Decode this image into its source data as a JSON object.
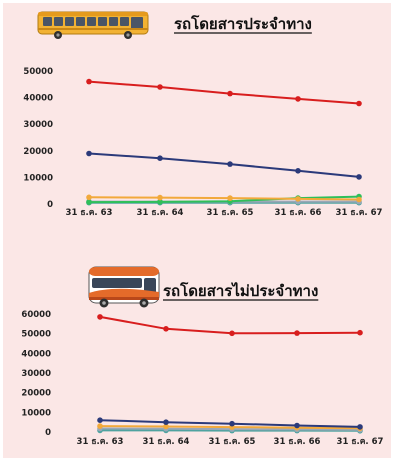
{
  "colors": {
    "background": "#fbe7e6",
    "red": "#d81e1e",
    "navy": "#2b3a7a",
    "orange": "#f2a93b",
    "green": "#2fbf5a",
    "gray": "#9aa7b6",
    "teal": "#4fa3a0"
  },
  "chart_data": [
    {
      "type": "line",
      "title": "รถโดยสารประจำทาง",
      "icon": "bus-icon",
      "x": [
        "31 ธ.ค. 63",
        "31 ธ.ค. 64",
        "31 ธ.ค. 65",
        "31 ธ.ค. 66",
        "31 ธ.ค. 67"
      ],
      "ylim": [
        0,
        50000
      ],
      "yticks": [
        "0",
        "10000",
        "20000",
        "30000",
        "40000",
        "50000"
      ],
      "grid": false,
      "series": [
        {
          "color": "#d81e1e",
          "values": [
            46000,
            44000,
            41500,
            39500,
            37800
          ]
        },
        {
          "color": "#2b3a7a",
          "values": [
            19000,
            17200,
            15000,
            12500,
            10200
          ]
        },
        {
          "color": "#f2a93b",
          "values": [
            2500,
            2400,
            2200,
            1900,
            1700
          ]
        },
        {
          "color": "#2fbf5a",
          "values": [
            700,
            800,
            1000,
            2200,
            2800
          ]
        },
        {
          "color": "#9aa7b6",
          "values": [
            900,
            900,
            900,
            900,
            900
          ]
        },
        {
          "color": "#4fa3a0",
          "values": [
            500,
            500,
            500,
            500,
            500
          ]
        }
      ]
    },
    {
      "type": "line",
      "title": "รถโดยสารไม่ประจำทาง",
      "icon": "tour-bus-icon",
      "x": [
        "31 ธ.ค. 63",
        "31 ธ.ค. 64",
        "31 ธ.ค. 65",
        "31 ธ.ค. 66",
        "31 ธ.ค. 67"
      ],
      "ylim": [
        0,
        60000
      ],
      "yticks": [
        "0",
        "10000",
        "20000",
        "30000",
        "40000",
        "50000",
        "60000"
      ],
      "grid": false,
      "series": [
        {
          "color": "#d81e1e",
          "values": [
            58500,
            52500,
            50200,
            50300,
            50500
          ]
        },
        {
          "color": "#2b3a7a",
          "values": [
            6000,
            5000,
            4200,
            3300,
            2600
          ]
        },
        {
          "color": "#f2a93b",
          "values": [
            3000,
            2800,
            2500,
            2200,
            1900
          ]
        },
        {
          "color": "#9aa7b6",
          "values": [
            1800,
            1700,
            1500,
            1300,
            1100
          ]
        },
        {
          "color": "#4fa3a0",
          "values": [
            800,
            800,
            700,
            700,
            600
          ]
        }
      ]
    }
  ]
}
